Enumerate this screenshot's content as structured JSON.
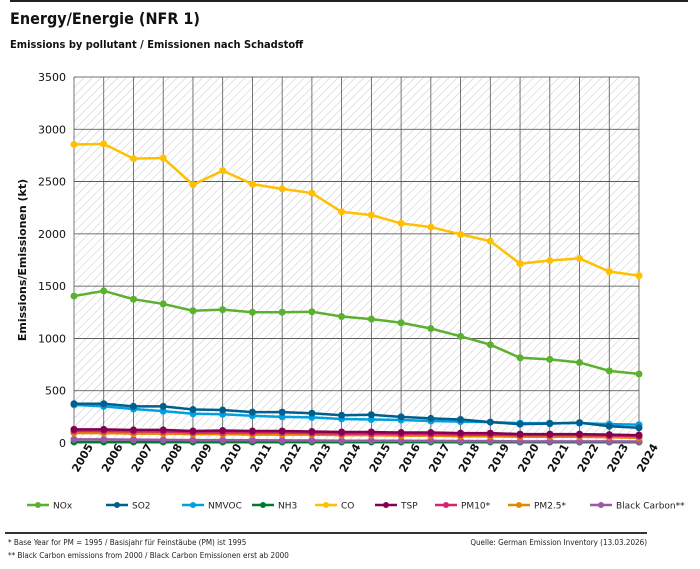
{
  "title": "Energy/Energie (NFR 1)",
  "subtitle": "Emissions by pollutant / Emissionen nach Schadstoff",
  "footnotes": [
    "* Base Year for PM = 1995 / Basisjahr für Feinstäube (PM) ist 1995",
    "** Black Carbon emissions from 2000 / Black Carbon Emissionen erst ab 2000"
  ],
  "source": "Quelle: German Emission Inventory (13.03.2026)",
  "chart_data": {
    "type": "line",
    "title": "",
    "xlabel": "",
    "ylabel": "Emissions/Emissionen (kt)",
    "ylim": [
      0,
      3500
    ],
    "yticks": [
      0,
      500,
      1000,
      1500,
      2000,
      2500,
      3000,
      3500
    ],
    "grid": true,
    "legend": "bottom",
    "x": [
      "2005",
      "2006",
      "2007",
      "2008",
      "2009",
      "2010",
      "2011",
      "2012",
      "2013",
      "2014",
      "2015",
      "2016",
      "2017",
      "2018",
      "2019",
      "2020",
      "2021",
      "2022",
      "2023",
      "2024"
    ],
    "series": [
      {
        "name": "NOx",
        "color": "#5cb030",
        "values": [
          1405,
          1455,
          1375,
          1330,
          1265,
          1275,
          1250,
          1250,
          1255,
          1210,
          1185,
          1150,
          1095,
          1020,
          940,
          815,
          800,
          770,
          690,
          660
        ]
      },
      {
        "name": "SO2",
        "color": "#005f8c",
        "values": [
          375,
          375,
          350,
          350,
          320,
          315,
          295,
          295,
          285,
          265,
          270,
          250,
          235,
          225,
          200,
          180,
          185,
          195,
          160,
          145
        ]
      },
      {
        "name": "NMVOC",
        "color": "#009fe0",
        "values": [
          365,
          350,
          325,
          305,
          280,
          275,
          260,
          250,
          245,
          230,
          225,
          220,
          210,
          205,
          200,
          190,
          190,
          190,
          180,
          175
        ]
      },
      {
        "name": "NH3",
        "color": "#007a33",
        "values": [
          10,
          10,
          10,
          10,
          10,
          10,
          10,
          10,
          10,
          10,
          10,
          10,
          10,
          10,
          10,
          9,
          9,
          9,
          9,
          9
        ]
      },
      {
        "name": "CO",
        "color": "#ffc000",
        "values": [
          2855,
          2860,
          2720,
          2725,
          2470,
          2605,
          2475,
          2430,
          2390,
          2210,
          2180,
          2100,
          2065,
          1995,
          1930,
          1715,
          1745,
          1765,
          1640,
          1600
        ]
      },
      {
        "name": "TSP",
        "color": "#830053",
        "values": [
          130,
          130,
          125,
          125,
          115,
          120,
          115,
          115,
          110,
          105,
          105,
          100,
          100,
          95,
          95,
          85,
          85,
          85,
          80,
          75
        ]
      },
      {
        "name": "PM10*",
        "color": "#d6246e",
        "values": [
          115,
          115,
          110,
          110,
          100,
          100,
          100,
          100,
          95,
          90,
          90,
          85,
          85,
          80,
          80,
          75,
          75,
          75,
          70,
          65
        ]
      },
      {
        "name": "PM2.5*",
        "color": "#de8b00",
        "values": [
          95,
          95,
          90,
          90,
          85,
          85,
          80,
          80,
          80,
          75,
          75,
          70,
          70,
          65,
          65,
          60,
          60,
          60,
          55,
          50
        ]
      },
      {
        "name": "Black Carbon**",
        "color": "#9b59a6",
        "values": [
          35,
          35,
          32,
          30,
          28,
          28,
          26,
          25,
          24,
          22,
          22,
          21,
          20,
          19,
          18,
          16,
          16,
          16,
          15,
          14
        ]
      }
    ]
  }
}
